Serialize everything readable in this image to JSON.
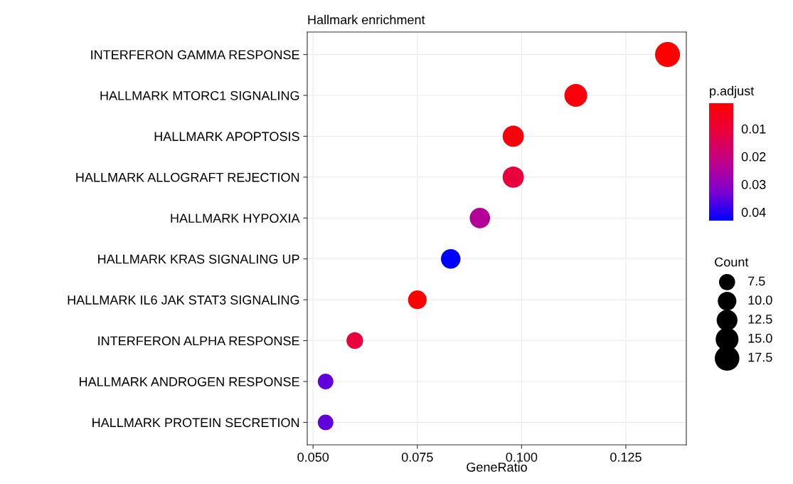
{
  "chart_data": {
    "type": "bubble",
    "title": "Hallmark enrichment",
    "xlabel": "GeneRatio",
    "clabel": "p.adjust",
    "legend_title": "Count",
    "categories": [
      "INTERFERON GAMMA RESPONSE",
      "HALLMARK MTORC1 SIGNALING",
      "HALLMARK APOPTOSIS",
      "HALLMARK ALLOGRAFT REJECTION",
      "HALLMARK HYPOXIA",
      "HALLMARK KRAS SIGNALING UP",
      "HALLMARK IL6 JAK STAT3 SIGNALING",
      "INTERFERON ALPHA RESPONSE",
      "HALLMARK ANDROGEN RESPONSE",
      "HALLMARK PROTEIN SECRETION"
    ],
    "values": [
      0.135,
      0.113,
      0.098,
      0.098,
      0.09,
      0.083,
      0.075,
      0.06,
      0.053,
      0.053
    ],
    "sizes": [
      18,
      15,
      13,
      13,
      12,
      11,
      10,
      8,
      7,
      7
    ],
    "cvalues": [
      0.0008,
      0.003,
      0.003,
      0.011,
      0.024,
      0.0431,
      0.001,
      0.011,
      0.035,
      0.035
    ],
    "size_legend": [
      7.5,
      {
        "value": 10,
        "label": "10.0"
      },
      12.5,
      {
        "value": 15,
        "label": "15.0"
      },
      17.5
    ],
    "orientation": "horizontal",
    "xlim": [
      0.0486,
      0.1395
    ],
    "xticks": [
      {
        "value": 0.05,
        "label": "0.050"
      },
      {
        "value": 0.075,
        "label": "0.075"
      },
      {
        "value": 0.1,
        "label": "0.100"
      },
      {
        "value": 0.125,
        "label": "0.125"
      }
    ],
    "clim": [
      0.0008,
      0.0431
    ],
    "cticks": [
      0.01,
      0.02,
      0.03,
      0.04
    ],
    "grid": true
  }
}
